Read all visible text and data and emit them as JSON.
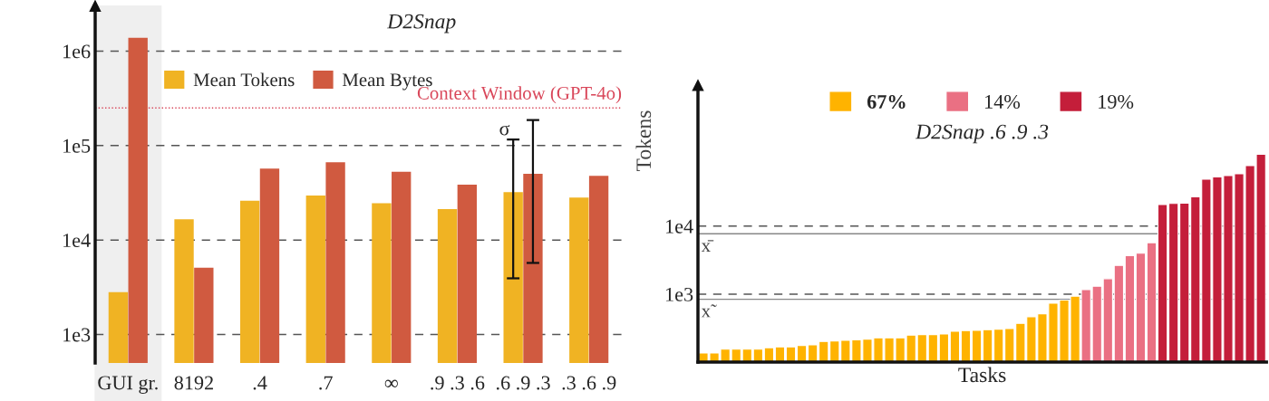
{
  "chart_data": [
    {
      "type": "bar",
      "title": "D2Snap",
      "log": true,
      "categories": [
        "GUI gr.",
        "8192",
        ".4",
        ".7",
        "∞",
        ".9 .3 .6",
        ".6 .9 .3",
        ".3 .6 .9"
      ],
      "series": [
        {
          "name": "Mean Tokens",
          "color": "#f0b323",
          "values": [
            2800,
            16600,
            26100,
            29500,
            24500,
            21300,
            32100,
            28100
          ],
          "errors": [
            null,
            null,
            null,
            null,
            null,
            null,
            [
              3930,
              116000
            ],
            null
          ]
        },
        {
          "name": "Mean Bytes",
          "color": "#d05a40",
          "values": [
            1380000,
            5100,
            57000,
            66600,
            52800,
            38500,
            50100,
            47700
          ],
          "errors": [
            null,
            null,
            null,
            null,
            null,
            null,
            [
              5720,
              186000
            ],
            null
          ]
        }
      ],
      "ylim": [
        500,
        3000000
      ],
      "yticks": [
        {
          "value": 1000,
          "label": "1e3"
        },
        {
          "value": 10000,
          "label": "1e4"
        },
        {
          "value": 100000,
          "label": "1e5"
        },
        {
          "value": 1000000,
          "label": "1e6"
        }
      ],
      "grid": "y",
      "legend": "top left",
      "ref_lines": [
        {
          "axis": "y",
          "value": 250000,
          "label": "Context Window (GPT-4o)",
          "color": "#d9475a",
          "line_style": "dotted"
        }
      ],
      "bands": [
        {
          "axis": "x",
          "from": "GUI gr.",
          "to": "GUI gr.",
          "color": "#efefef"
        }
      ],
      "annotations": [
        "σ"
      ]
    },
    {
      "type": "bar",
      "title": "D2Snap .6 .9 .3",
      "xlabel": "Tasks",
      "ylabel": "Tokens",
      "log": true,
      "categories": [
        null,
        null,
        null,
        null,
        null,
        null,
        null,
        null,
        null,
        null,
        null,
        null,
        null,
        null,
        null,
        null,
        null,
        null,
        null,
        null,
        null,
        null,
        null,
        null,
        null,
        null,
        null,
        null,
        null,
        null,
        null,
        null,
        null,
        null,
        null,
        null,
        null,
        null,
        null,
        null,
        null,
        null,
        null,
        null,
        null,
        null,
        null,
        null,
        null,
        null,
        null,
        null
      ],
      "series": [
        {
          "name": "67%",
          "color": "#ffb300",
          "values": [
            136,
            136,
            155,
            155,
            155,
            155,
            163,
            167,
            167,
            176,
            179,
            201,
            205,
            209,
            213,
            218,
            227,
            227,
            227,
            249,
            254,
            254,
            259,
            284,
            290,
            293,
            299,
            305,
            311,
            371,
            464,
            514,
            736,
            815,
            931,
            null,
            null,
            null,
            null,
            null,
            null,
            null,
            null,
            null,
            null,
            null,
            null,
            null,
            null,
            null,
            null,
            null
          ]
        },
        {
          "name": "14%",
          "color": "#ea7083",
          "values": [
            null,
            null,
            null,
            null,
            null,
            null,
            null,
            null,
            null,
            null,
            null,
            null,
            null,
            null,
            null,
            null,
            null,
            null,
            null,
            null,
            null,
            null,
            null,
            null,
            null,
            null,
            null,
            null,
            null,
            null,
            null,
            null,
            null,
            null,
            null,
            1166,
            1305,
            1686,
            2643,
            3664,
            3981,
            5701,
            null,
            null,
            null,
            null,
            null,
            null,
            null,
            null,
            null,
            null
          ]
        },
        {
          "name": "19%",
          "color": "#c41e3a",
          "values": [
            null,
            null,
            null,
            null,
            null,
            null,
            null,
            null,
            null,
            null,
            null,
            null,
            null,
            null,
            null,
            null,
            null,
            null,
            null,
            null,
            null,
            null,
            null,
            null,
            null,
            null,
            null,
            null,
            null,
            null,
            null,
            null,
            null,
            null,
            null,
            null,
            null,
            null,
            null,
            null,
            null,
            null,
            20700,
            21500,
            21700,
            27000,
            48900,
            53000,
            55200,
            58800,
            77400,
            114000
          ]
        }
      ],
      "ylim": [
        100,
        1170000
      ],
      "yticks": [
        {
          "value": 1000,
          "label": "1e3"
        },
        {
          "value": 10000,
          "label": "1e4"
        }
      ],
      "grid": "y",
      "legend": "top",
      "ref_lines": [
        {
          "axis": "y",
          "value": 7700,
          "label": "x̄",
          "color": "#888888",
          "line_style": "solid"
        },
        {
          "axis": "y",
          "value": 840,
          "label": "x̃",
          "color": "#888888",
          "line_style": "solid"
        }
      ]
    }
  ]
}
